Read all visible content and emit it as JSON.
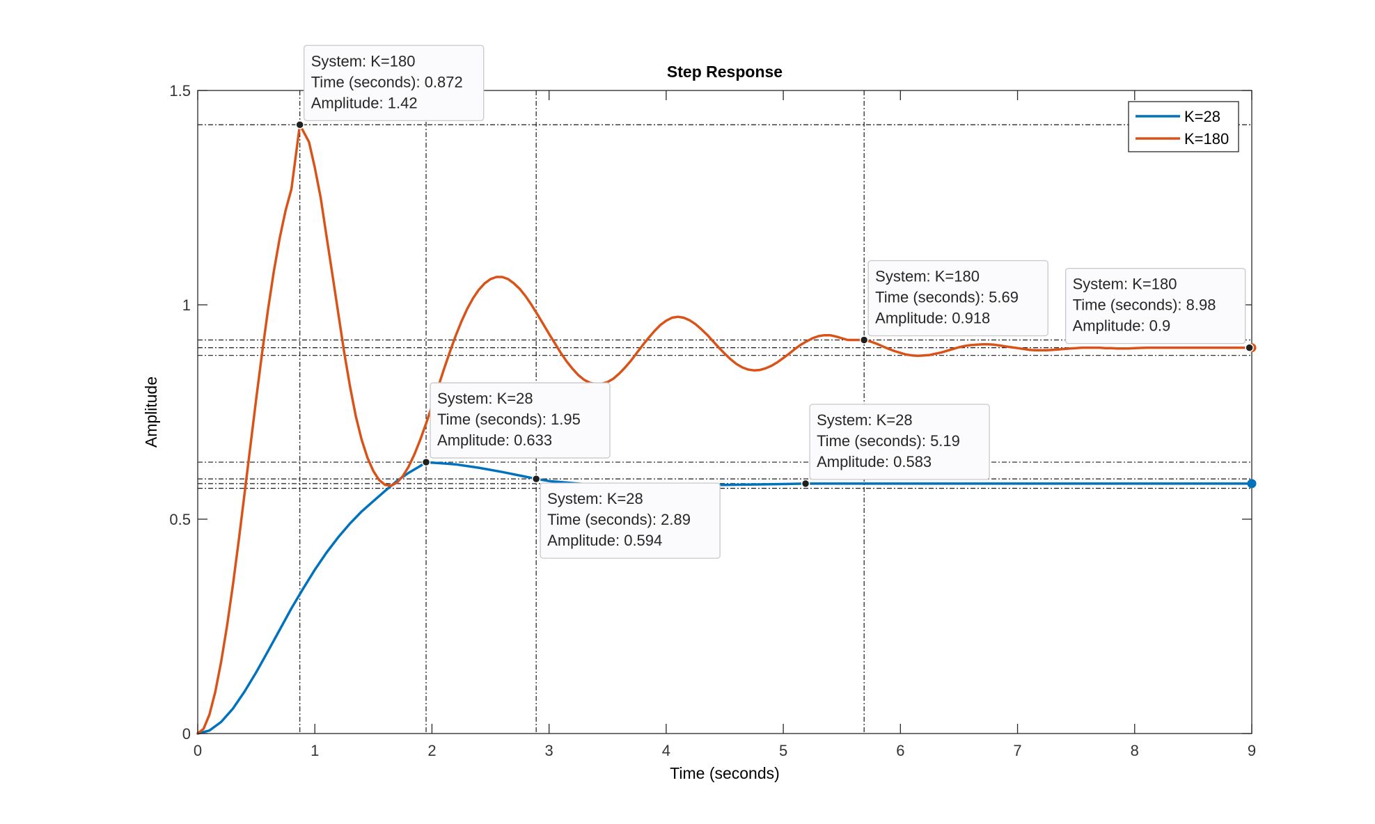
{
  "chart_data": {
    "type": "line",
    "title": "Step Response",
    "xlabel": "Time (seconds)",
    "ylabel": "Amplitude",
    "xlim": [
      0,
      9
    ],
    "ylim": [
      0,
      1.5
    ],
    "xticks": [
      0,
      1,
      2,
      3,
      4,
      5,
      6,
      7,
      8,
      9
    ],
    "yticks": [
      0,
      0.5,
      1,
      1.5
    ],
    "xtick_labels": [
      "0",
      "1",
      "2",
      "3",
      "4",
      "5",
      "6",
      "7",
      "8",
      "9"
    ],
    "ytick_labels": [
      "0",
      "0.5",
      "1",
      "1.5"
    ],
    "grid": false,
    "legend_position": "top-right",
    "series": [
      {
        "name": "K=28",
        "color": "#0072BD",
        "x": [
          0,
          0.1,
          0.2,
          0.3,
          0.4,
          0.5,
          0.6,
          0.7,
          0.8,
          0.9,
          1.0,
          1.1,
          1.2,
          1.3,
          1.4,
          1.5,
          1.6,
          1.7,
          1.8,
          1.9,
          1.95,
          2.0,
          2.2,
          2.4,
          2.6,
          2.8,
          2.89,
          3.0,
          3.3,
          3.6,
          4.0,
          4.5,
          5.0,
          5.19,
          5.5,
          6.0,
          7.0,
          8.0,
          9.0
        ],
        "values": [
          0,
          0.007,
          0.027,
          0.058,
          0.098,
          0.143,
          0.192,
          0.242,
          0.292,
          0.338,
          0.382,
          0.422,
          0.458,
          0.49,
          0.518,
          0.542,
          0.566,
          0.589,
          0.608,
          0.624,
          0.633,
          0.632,
          0.628,
          0.62,
          0.61,
          0.599,
          0.594,
          0.589,
          0.582,
          0.58,
          0.579,
          0.58,
          0.582,
          0.583,
          0.583,
          0.583,
          0.583,
          0.583,
          0.583
        ]
      },
      {
        "name": "K=180",
        "color": "#D95319",
        "x": [
          0,
          0.05,
          0.1,
          0.15,
          0.2,
          0.25,
          0.3,
          0.35,
          0.4,
          0.45,
          0.5,
          0.55,
          0.6,
          0.65,
          0.7,
          0.75,
          0.8,
          0.872,
          0.95,
          1.0,
          1.05,
          1.1,
          1.15,
          1.2,
          1.25,
          1.3,
          1.35,
          1.4,
          1.45,
          1.5,
          1.55,
          1.6,
          1.65,
          1.7,
          1.75,
          1.8,
          1.85,
          1.9,
          1.95,
          2.0,
          2.05,
          2.1,
          2.15,
          2.2,
          2.25,
          2.3,
          2.35,
          2.4,
          2.45,
          2.5,
          2.55,
          2.6,
          2.65,
          2.7,
          2.75,
          2.8,
          2.85,
          2.9,
          2.95,
          3.0,
          3.05,
          3.1,
          3.15,
          3.2,
          3.25,
          3.3,
          3.35,
          3.4,
          3.45,
          3.5,
          3.55,
          3.6,
          3.65,
          3.7,
          3.75,
          3.8,
          3.85,
          3.9,
          3.95,
          4.0,
          4.05,
          4.1,
          4.15,
          4.2,
          4.25,
          4.3,
          4.35,
          4.4,
          4.45,
          4.5,
          4.55,
          4.6,
          4.65,
          4.7,
          4.75,
          4.8,
          4.85,
          4.9,
          4.95,
          5.0,
          5.05,
          5.1,
          5.15,
          5.2,
          5.25,
          5.3,
          5.35,
          5.4,
          5.45,
          5.5,
          5.55,
          5.6,
          5.69,
          5.75,
          5.8,
          5.85,
          5.9,
          5.95,
          6.0,
          6.05,
          6.1,
          6.15,
          6.2,
          6.25,
          6.3,
          6.35,
          6.4,
          6.45,
          6.5,
          6.55,
          6.6,
          6.65,
          6.7,
          6.75,
          6.8,
          6.85,
          6.9,
          6.95,
          7.0,
          7.05,
          7.1,
          7.15,
          7.2,
          7.25,
          7.3,
          7.35,
          7.4,
          7.45,
          7.5,
          7.55,
          7.6,
          7.65,
          7.7,
          7.75,
          7.8,
          7.85,
          7.9,
          7.95,
          8.0,
          8.1,
          8.2,
          8.3,
          8.4,
          8.5,
          8.6,
          8.7,
          8.8,
          8.9,
          8.98,
          9.0
        ],
        "values": [
          0,
          0.011,
          0.044,
          0.097,
          0.167,
          0.251,
          0.346,
          0.45,
          0.56,
          0.671,
          0.782,
          0.888,
          0.988,
          1.078,
          1.156,
          1.22,
          1.27,
          1.42,
          1.38,
          1.32,
          1.25,
          1.16,
          1.07,
          0.98,
          0.89,
          0.81,
          0.74,
          0.685,
          0.643,
          0.612,
          0.591,
          0.58,
          0.578,
          0.585,
          0.6,
          0.622,
          0.651,
          0.685,
          0.723,
          0.764,
          0.806,
          0.848,
          0.888,
          0.926,
          0.96,
          0.99,
          1.015,
          1.035,
          1.05,
          1.06,
          1.065,
          1.065,
          1.06,
          1.05,
          1.037,
          1.02,
          1.0,
          0.978,
          0.955,
          0.932,
          0.91,
          0.888,
          0.868,
          0.851,
          0.836,
          0.825,
          0.818,
          0.815,
          0.816,
          0.82,
          0.828,
          0.84,
          0.854,
          0.87,
          0.888,
          0.906,
          0.923,
          0.939,
          0.953,
          0.963,
          0.97,
          0.972,
          0.97,
          0.964,
          0.955,
          0.943,
          0.93,
          0.915,
          0.9,
          0.886,
          0.873,
          0.862,
          0.854,
          0.849,
          0.847,
          0.848,
          0.852,
          0.858,
          0.866,
          0.876,
          0.886,
          0.897,
          0.907,
          0.915,
          0.922,
          0.927,
          0.929,
          0.929,
          0.926,
          0.922,
          0.918,
          0.918,
          0.918,
          0.914,
          0.909,
          0.903,
          0.897,
          0.892,
          0.888,
          0.884,
          0.882,
          0.881,
          0.882,
          0.883,
          0.886,
          0.889,
          0.893,
          0.897,
          0.901,
          0.904,
          0.906,
          0.907,
          0.908,
          0.908,
          0.907,
          0.905,
          0.903,
          0.901,
          0.899,
          0.897,
          0.895,
          0.894,
          0.894,
          0.894,
          0.895,
          0.896,
          0.897,
          0.898,
          0.899,
          0.9,
          0.9,
          0.9,
          0.9,
          0.899,
          0.899,
          0.898,
          0.898,
          0.898,
          0.899,
          0.9,
          0.9,
          0.9,
          0.9,
          0.9,
          0.9,
          0.9,
          0.9,
          0.9,
          0.9,
          0.9
        ]
      }
    ],
    "annotations": [
      {
        "series": "K=180",
        "x": 0.872,
        "y": 1.42,
        "lines": [
          "System: K=180",
          "Time (seconds): 0.872",
          "Amplitude: 1.42"
        ],
        "placement": "above-right"
      },
      {
        "series": "K=180",
        "x": 5.69,
        "y": 0.918,
        "lines": [
          "System: K=180",
          "Time (seconds): 5.69",
          "Amplitude: 0.918"
        ],
        "placement": "above-right"
      },
      {
        "series": "K=180",
        "x": 8.98,
        "y": 0.9,
        "lines": [
          "System: K=180",
          "Time (seconds): 8.98",
          "Amplitude: 0.9"
        ],
        "placement": "above-left"
      },
      {
        "series": "K=28",
        "x": 1.95,
        "y": 0.633,
        "lines": [
          "System: K=28",
          "Time (seconds): 1.95",
          "Amplitude: 0.633"
        ],
        "placement": "above-right"
      },
      {
        "series": "K=28",
        "x": 2.89,
        "y": 0.594,
        "lines": [
          "System: K=28",
          "Time (seconds): 2.89",
          "Amplitude: 0.594"
        ],
        "placement": "below-right"
      },
      {
        "series": "K=28",
        "x": 5.19,
        "y": 0.583,
        "lines": [
          "System: K=28",
          "Time (seconds): 5.19",
          "Amplitude: 0.583"
        ],
        "placement": "above-right"
      }
    ],
    "reference_lines": {
      "horizontal": [
        1.42,
        0.918,
        0.9,
        0.882,
        0.633,
        0.594,
        0.583,
        0.572
      ],
      "vertical": [
        0.872,
        1.95,
        2.89,
        5.69
      ]
    },
    "end_markers": [
      {
        "series": "K=28",
        "x": 9,
        "y": 0.583
      },
      {
        "series": "K=180",
        "x": 9,
        "y": 0.9
      }
    ]
  }
}
